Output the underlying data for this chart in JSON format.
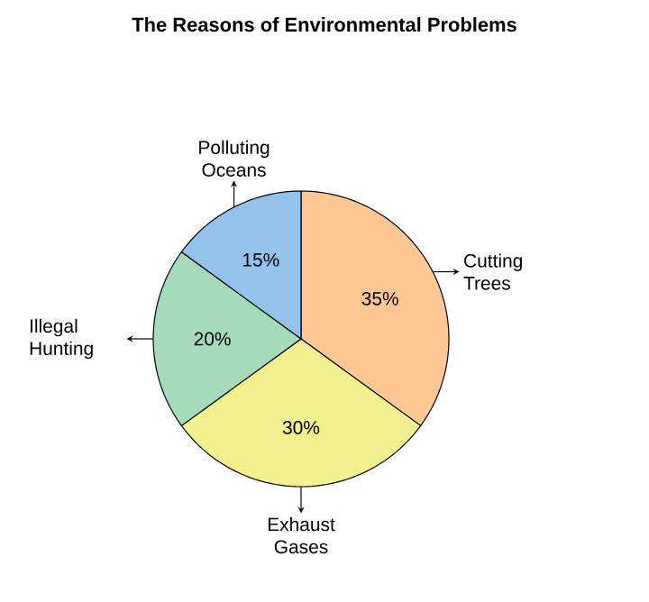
{
  "chart_data": {
    "type": "pie",
    "title": "The Reasons of Environmental Problems",
    "categories": [
      "Cutting Trees",
      "Exhaust Gases",
      "Illegal Hunting",
      "Polluting Oceans"
    ],
    "values": [
      35,
      30,
      20,
      15
    ],
    "value_labels": [
      "35%",
      "30%",
      "20%",
      "15%"
    ],
    "colors": [
      "#fdc793",
      "#f3f08f",
      "#a3dbbb",
      "#93c3eb"
    ]
  }
}
